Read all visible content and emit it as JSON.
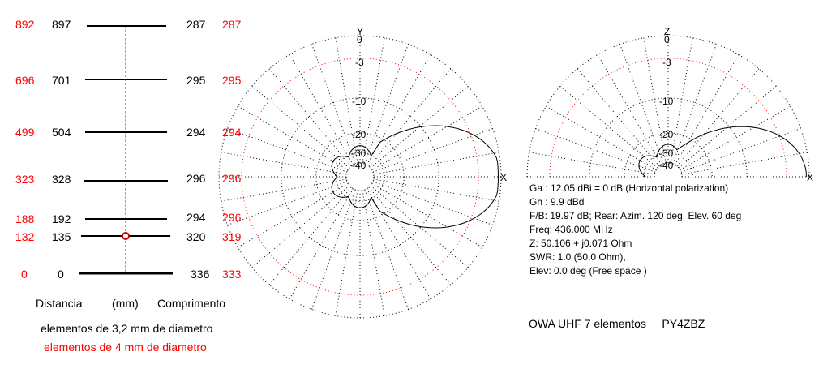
{
  "elements": [
    {
      "dist_red": "892",
      "dist_black": "897",
      "len_black": "287",
      "len_red": "287"
    },
    {
      "dist_red": "696",
      "dist_black": "701",
      "len_black": "295",
      "len_red": "295"
    },
    {
      "dist_red": "499",
      "dist_black": "504",
      "len_black": "294",
      "len_red": "294"
    },
    {
      "dist_red": "323",
      "dist_black": "328",
      "len_black": "296",
      "len_red": "296"
    },
    {
      "dist_red": "188",
      "dist_black": "192",
      "len_black": "294",
      "len_red": "296"
    },
    {
      "dist_red": "132",
      "dist_black": "135",
      "len_black": "320",
      "len_red": "319"
    },
    {
      "dist_red": "0",
      "dist_black": "0",
      "len_black": "336",
      "len_red": "333"
    }
  ],
  "labels": {
    "distancia": "Distancia",
    "mm": "(mm)",
    "comprimento": "Comprimento",
    "diam_black": "elementos de 3,2 mm de diametro",
    "diam_red": "elementos de 4 mm de diametro"
  },
  "polar_horizontal": {
    "axis_top": "Y",
    "axis_right": "X",
    "ring_labels": [
      "0",
      "-3",
      "-10",
      "-20",
      "-30",
      "-40"
    ]
  },
  "polar_vertical": {
    "axis_top": "Z",
    "axis_right": "X",
    "ring_labels": [
      "0",
      "-3",
      "-10",
      "-20",
      "-30",
      "-40"
    ]
  },
  "info": {
    "ga": "Ga : 12.05 dBi = 0 dB  (Horizontal polarization)",
    "gh": "Gh : 9.9 dBd",
    "fb": "F/B: 19.97 dB; Rear: Azim. 120 deg,  Elev. 60 deg",
    "freq": "Freq: 436.000 MHz",
    "z": "Z: 50.106 + j0.071 Ohm",
    "swr": "SWR: 1.0 (50.0 Ohm),",
    "elev": "Elev: 0.0 deg (Free space )"
  },
  "title": "OWA UHF 7 elementos     PY4ZBZ",
  "colors": {
    "red": "#ff0000",
    "feed_line": "#8000ff",
    "grid": "#000000"
  }
}
